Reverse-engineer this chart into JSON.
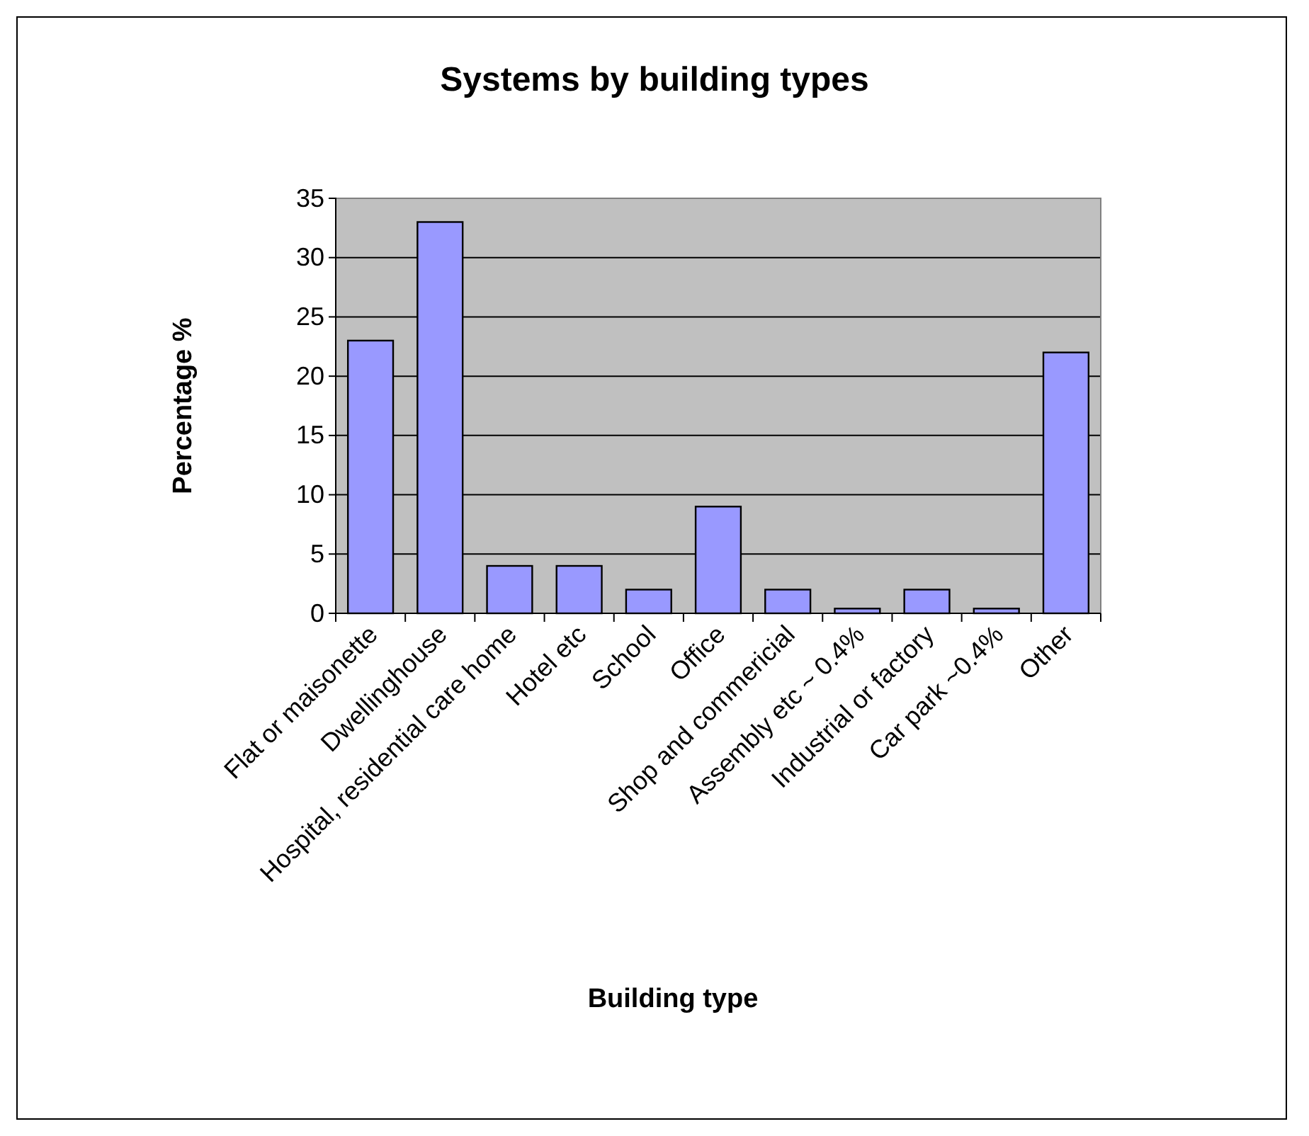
{
  "chart_data": {
    "type": "bar",
    "title": "Systems by building types",
    "xlabel": "Building type",
    "ylabel": "Percentage %",
    "categories": [
      "Flat or maisonette",
      "Dwellinghouse",
      "Hospital, residential care home",
      "Hotel etc",
      "School",
      "Office",
      "Shop and commericial",
      "Assembly etc ~ 0.4%",
      "Industrial or factory",
      "Car park ~0.4%",
      "Other"
    ],
    "values": [
      23,
      33,
      4,
      4,
      2,
      9,
      2,
      0.4,
      2,
      0.4,
      22
    ],
    "color": "#9999ff",
    "ylim": [
      0,
      35
    ],
    "yticks": [
      0,
      5,
      10,
      15,
      20,
      25,
      30,
      35
    ],
    "grid": "y"
  }
}
